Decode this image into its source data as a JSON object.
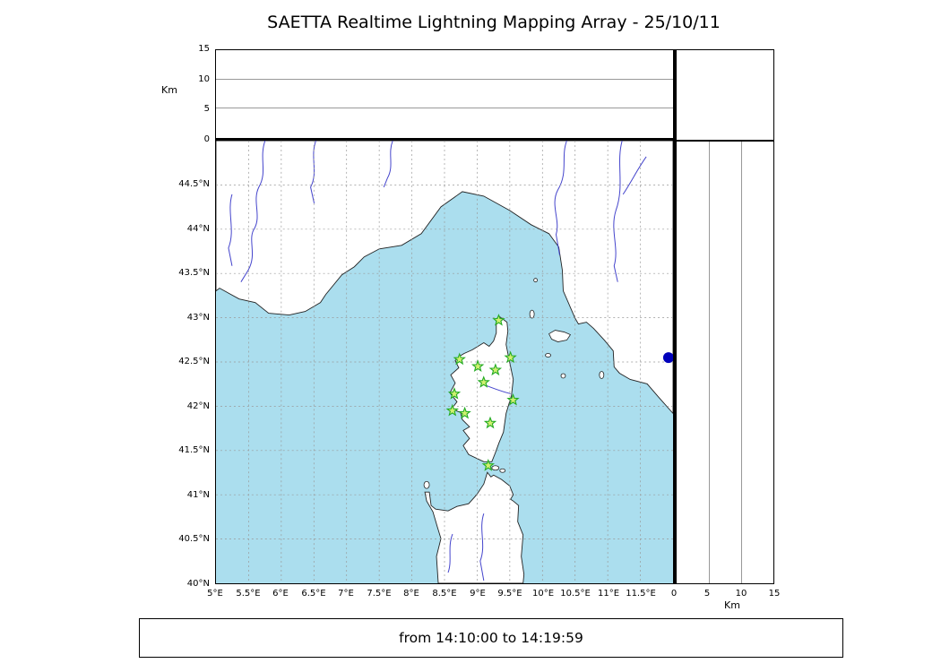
{
  "title": "SAETTA Realtime Lightning Mapping Array - 25/10/11",
  "altitude_panel": {
    "unit_label": "Km",
    "ticks": [
      "15",
      "10",
      "5",
      "0"
    ]
  },
  "right_panel": {
    "unit_label": "Km",
    "ticks": [
      "0",
      "5",
      "10",
      "15"
    ]
  },
  "map_axes": {
    "lat_ticks": [
      "44.5°N",
      "44°N",
      "43.5°N",
      "43°N",
      "42.5°N",
      "42°N",
      "41.5°N",
      "41°N",
      "40.5°N",
      "40°N"
    ],
    "lon_ticks": [
      "5°E",
      "5.5°E",
      "6°E",
      "6.5°E",
      "7°E",
      "7.5°E",
      "8°E",
      "8.5°E",
      "9°E",
      "9.5°E",
      "10°E",
      "10.5°E",
      "11°E",
      "11.5°E"
    ]
  },
  "footer": {
    "text": "from 14:10:00 to 14:19:59"
  },
  "chart_data": {
    "type": "scatter",
    "title": "SAETTA Realtime Lightning Mapping Array - 25/10/11",
    "time_window": "from 14:10:00 to 14:19:59",
    "map_extent": {
      "lon": [
        5,
        12
      ],
      "lat": [
        40,
        45
      ]
    },
    "grid_step_deg": 0.5,
    "altitude_axis_range_km": [
      0,
      15
    ],
    "altitude_axis_ticks_km": [
      0,
      5,
      10,
      15
    ],
    "stations_lonlat": [
      [
        9.33,
        42.97
      ],
      [
        8.73,
        42.53
      ],
      [
        9.01,
        42.45
      ],
      [
        9.28,
        42.41
      ],
      [
        9.51,
        42.55
      ],
      [
        9.1,
        42.27
      ],
      [
        8.65,
        42.14
      ],
      [
        9.55,
        42.07
      ],
      [
        8.62,
        41.95
      ],
      [
        8.81,
        41.92
      ],
      [
        9.2,
        41.81
      ],
      [
        9.17,
        41.33
      ]
    ],
    "event_markers_lonlat": [
      [
        11.93,
        42.55
      ]
    ]
  },
  "colors": {
    "sea": "#abdeee",
    "land": "#ffffff",
    "coast": "#222222",
    "river": "#4444cc",
    "grid": "#999999",
    "station_fill": "#d0f070",
    "station_stroke": "#22aa22",
    "event": "#0000bb",
    "frame": "#000000"
  }
}
